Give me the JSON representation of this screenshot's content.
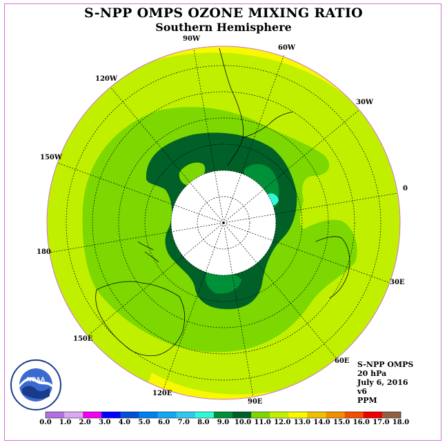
{
  "header": {
    "title": "S-NPP OMPS OZONE MIXING RATIO",
    "subtitle": "Southern Hemisphere"
  },
  "longitude_labels": [
    "90W",
    "60W",
    "30W",
    "0",
    "30E",
    "60E",
    "90E",
    "120E",
    "150E",
    "180",
    "150W",
    "120W"
  ],
  "info": {
    "instrument": "S-NPP OMPS",
    "level": "20 hPa",
    "date": "July 6, 2016",
    "version": "v6",
    "units": "PPM"
  },
  "colorbar": {
    "labels": [
      "0.0",
      "1.0",
      "2.0",
      "3.0",
      "4.0",
      "5.0",
      "6.0",
      "7.0",
      "8.0",
      "9.0",
      "10.0",
      "11.0",
      "12.0",
      "13.0",
      "14.0",
      "15.0",
      "16.0",
      "17.0",
      "18.0"
    ],
    "colors": [
      "#b070e0",
      "#d8a8f0",
      "#f000f0",
      "#0000ff",
      "#0050d8",
      "#0080f0",
      "#10a8f0",
      "#30c8f0",
      "#30f8d8",
      "#009038",
      "#006028",
      "#7cd800",
      "#c0f000",
      "#f8f800",
      "#f0c000",
      "#f09000",
      "#f05000",
      "#f00000",
      "#906040"
    ]
  },
  "logo": {
    "text": "NOAA"
  },
  "colors": {
    "level_12": "#c0f000",
    "level_13": "#f8f800",
    "level_11": "#7cd800",
    "level_10": "#006028",
    "level_9": "#009038",
    "level_8": "#30f8d8",
    "frame": "#d070d0"
  }
}
